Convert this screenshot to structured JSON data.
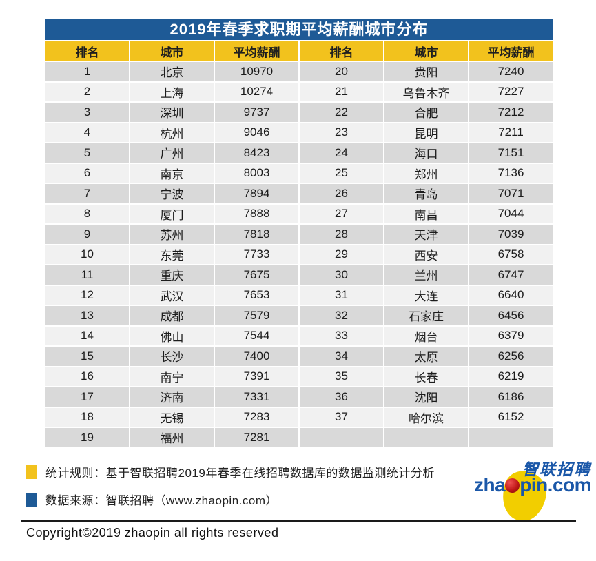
{
  "title": "2019年春季求职期平均薪酬城市分布",
  "chart_data": {
    "type": "table",
    "title": "2019年春季求职期平均薪酬城市分布",
    "columns": [
      "排名",
      "城市",
      "平均薪酬",
      "排名",
      "城市",
      "平均薪酬"
    ],
    "rows": [
      [
        "1",
        "北京",
        "10970",
        "20",
        "贵阳",
        "7240"
      ],
      [
        "2",
        "上海",
        "10274",
        "21",
        "乌鲁木齐",
        "7227"
      ],
      [
        "3",
        "深圳",
        "9737",
        "22",
        "合肥",
        "7212"
      ],
      [
        "4",
        "杭州",
        "9046",
        "23",
        "昆明",
        "7211"
      ],
      [
        "5",
        "广州",
        "8423",
        "24",
        "海口",
        "7151"
      ],
      [
        "6",
        "南京",
        "8003",
        "25",
        "郑州",
        "7136"
      ],
      [
        "7",
        "宁波",
        "7894",
        "26",
        "青岛",
        "7071"
      ],
      [
        "8",
        "厦门",
        "7888",
        "27",
        "南昌",
        "7044"
      ],
      [
        "9",
        "苏州",
        "7818",
        "28",
        "天津",
        "7039"
      ],
      [
        "10",
        "东莞",
        "7733",
        "29",
        "西安",
        "6758"
      ],
      [
        "11",
        "重庆",
        "7675",
        "30",
        "兰州",
        "6747"
      ],
      [
        "12",
        "武汉",
        "7653",
        "31",
        "大连",
        "6640"
      ],
      [
        "13",
        "成都",
        "7579",
        "32",
        "石家庄",
        "6456"
      ],
      [
        "14",
        "佛山",
        "7544",
        "33",
        "烟台",
        "6379"
      ],
      [
        "15",
        "长沙",
        "7400",
        "34",
        "太原",
        "6256"
      ],
      [
        "16",
        "南宁",
        "7391",
        "35",
        "长春",
        "6219"
      ],
      [
        "17",
        "济南",
        "7331",
        "36",
        "沈阳",
        "6186"
      ],
      [
        "18",
        "无锡",
        "7283",
        "37",
        "哈尔滨",
        "6152"
      ],
      [
        "19",
        "福州",
        "7281",
        "",
        "",
        ""
      ]
    ]
  },
  "notes": [
    {
      "icon": "yellow-square",
      "text": "统计规则：基于智联招聘2019年春季在线招聘数据库的数据监测统计分析"
    },
    {
      "icon": "blue-square",
      "text": "数据来源：智联招聘（www.zhaopin.com）"
    }
  ],
  "logo": {
    "chinese": "智联招聘",
    "en_prefix": "zha",
    "en_suffix": "pin.com"
  },
  "copyright": "Copyright©2019 zhaopin all rights reserved",
  "colors": {
    "title_bg": "#1E5A96",
    "header_bg": "#F2C21D",
    "row_odd": "#D9D9D9",
    "row_even": "#F1F1F1",
    "note_yellow": "#F2C21D",
    "note_blue": "#1E5A96",
    "logo_blue": "#1A57A8",
    "logo_yellow": "#F2CE00",
    "logo_red": "#C01818"
  }
}
